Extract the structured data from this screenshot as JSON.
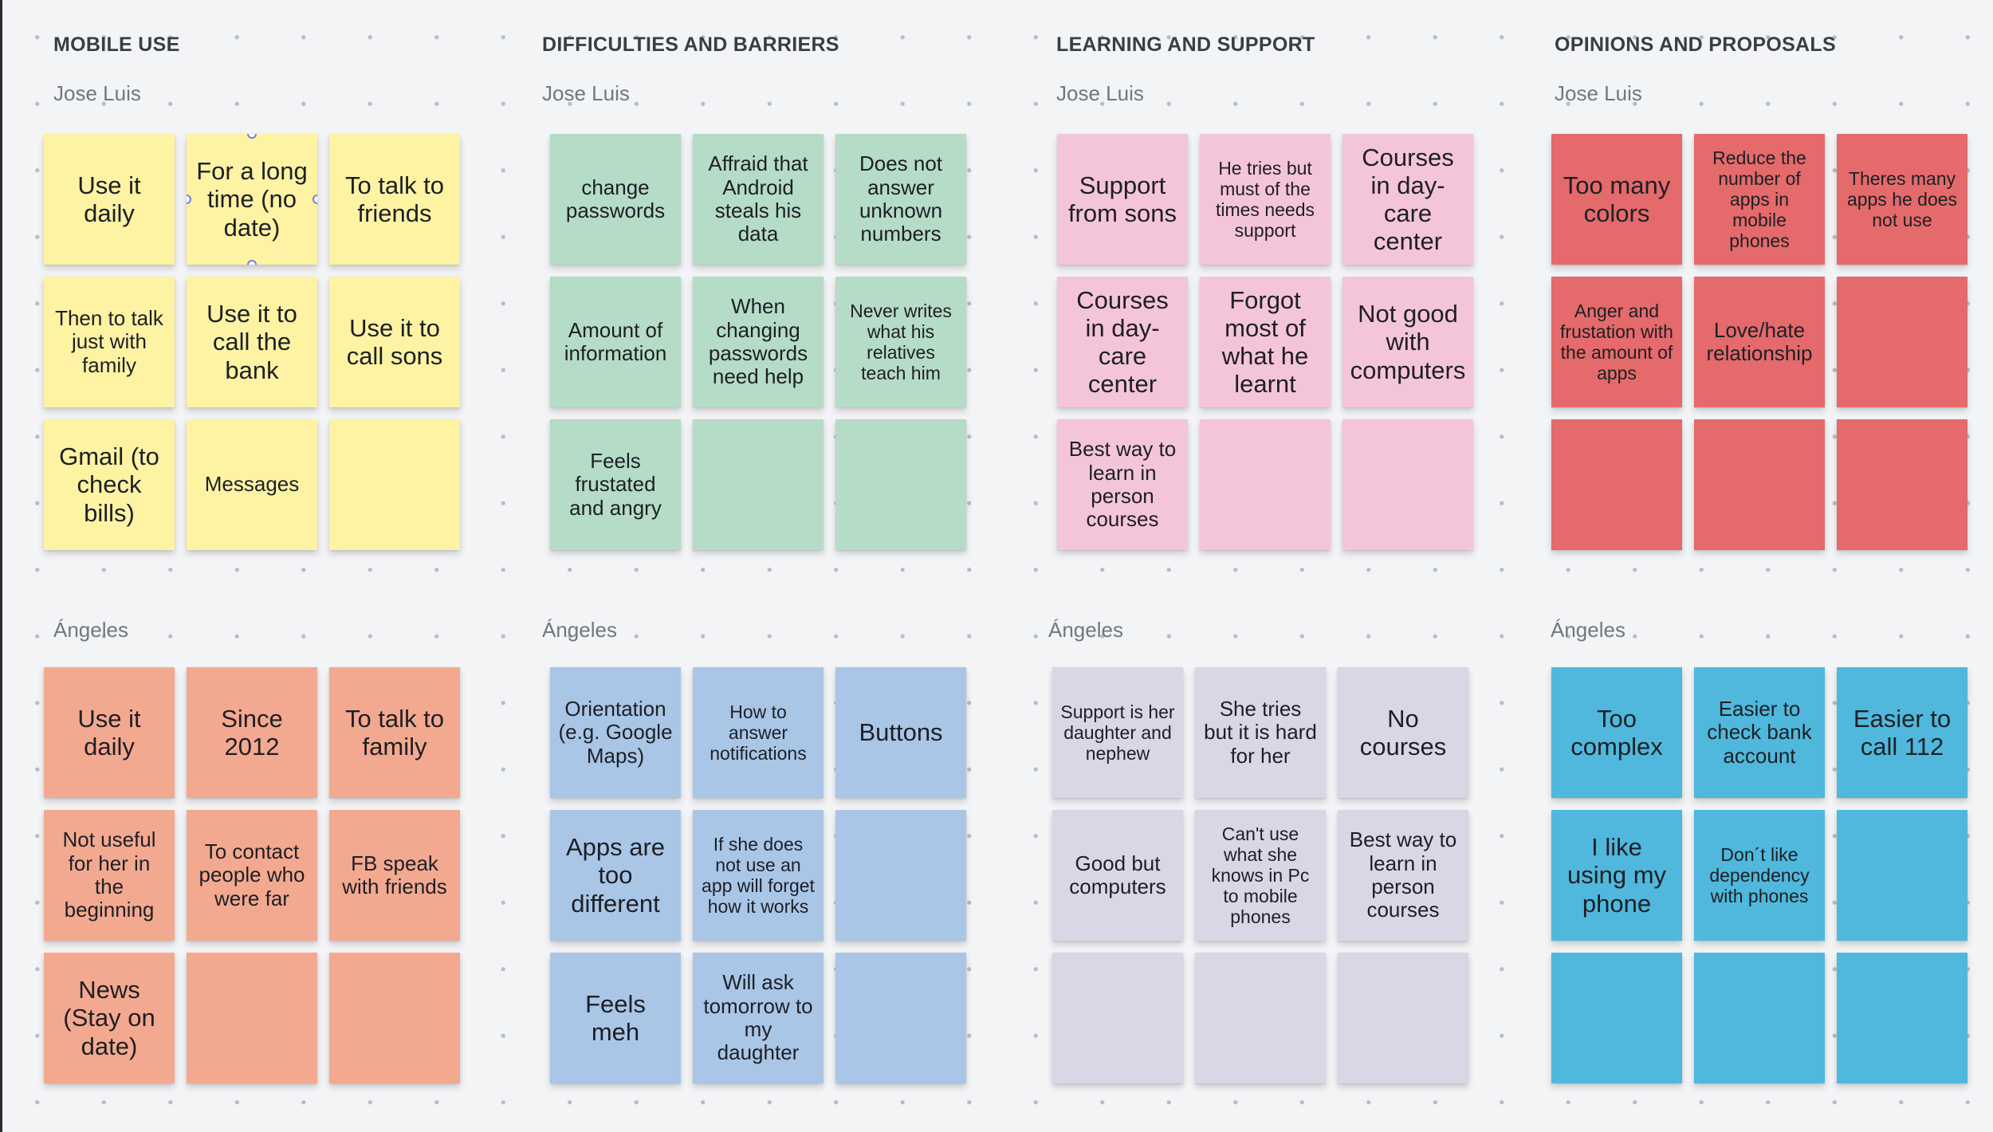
{
  "colors": {
    "yellow": "#fdf3a3",
    "green": "#b5dcc6",
    "pink": "#f4c5d9",
    "red": "#e46a6c",
    "salmon": "#f3a990",
    "blue": "#a9c6e7",
    "lavender": "#d9d6e5",
    "cyan": "#4fb8dc",
    "selection": "#7c79e0"
  },
  "sections": [
    {
      "title": "MOBILE USE",
      "groups": [
        {
          "person": "Jose Luis",
          "color": "yellow",
          "notes": [
            "Use it daily",
            "For a long time (no date)",
            "To talk to friends",
            "Then to talk just with family",
            "Use it to call the bank",
            "Use it to call sons",
            "Gmail (to check bills)",
            "Messages",
            ""
          ]
        },
        {
          "person": "Ángeles",
          "color": "salmon",
          "notes": [
            "Use it daily",
            "Since 2012",
            "To talk to family",
            "Not useful for her in the beginning",
            "To contact people who were far",
            "FB  speak with friends",
            "News (Stay on date)",
            "",
            ""
          ]
        }
      ]
    },
    {
      "title": "DIFFICULTIES AND BARRIERS",
      "groups": [
        {
          "person": "Jose Luis",
          "color": "green",
          "notes": [
            "change passwords",
            "Affraid that Android steals his data",
            "Does not answer unknown numbers",
            "Amount of information",
            "When changing passwords need help",
            "Never writes what his relatives teach him",
            "Feels frustated and angry",
            "",
            ""
          ]
        },
        {
          "person": "Ángeles",
          "color": "blue",
          "notes": [
            "Orientation (e.g. Google Maps)",
            "How to answer notifications",
            "Buttons",
            "Apps are too different",
            "If she does not use an app will forget how it works",
            "",
            "Feels meh",
            "Will ask tomorrow to my daughter",
            ""
          ]
        }
      ]
    },
    {
      "title": "LEARNING AND SUPPORT",
      "groups": [
        {
          "person": "Jose Luis",
          "color": "pink",
          "notes": [
            "Support from sons",
            "He tries but must of the times needs support",
            "Courses in day-care center",
            "Courses in day-care center",
            "Forgot most of what he learnt",
            "Not good with computers",
            "Best way to learn in person courses",
            "",
            ""
          ]
        },
        {
          "person": "Ángeles",
          "color": "lavender",
          "notes": [
            "Support is her daughter and nephew",
            "She tries but it is hard for her",
            "No courses",
            "Good but computers",
            "Can't use what she knows in Pc to mobile phones",
            "Best way to learn in person courses",
            "",
            "",
            ""
          ]
        }
      ]
    },
    {
      "title": "OPINIONS AND PROPOSALS",
      "groups": [
        {
          "person": "Jose Luis",
          "color": "red",
          "notes": [
            "Too many colors",
            "Reduce the number of apps in mobile phones",
            "Theres many apps he does not use",
            "Anger and frustation with the amount of apps",
            "Love/hate relationship",
            "",
            "",
            "",
            ""
          ]
        },
        {
          "person": "Ángeles",
          "color": "cyan",
          "notes": [
            "Too complex",
            "Easier to check bank account",
            "Easier to call 112",
            "I like using my phone",
            "Don´t like dependency with phones",
            "",
            "",
            "",
            ""
          ]
        }
      ]
    }
  ]
}
